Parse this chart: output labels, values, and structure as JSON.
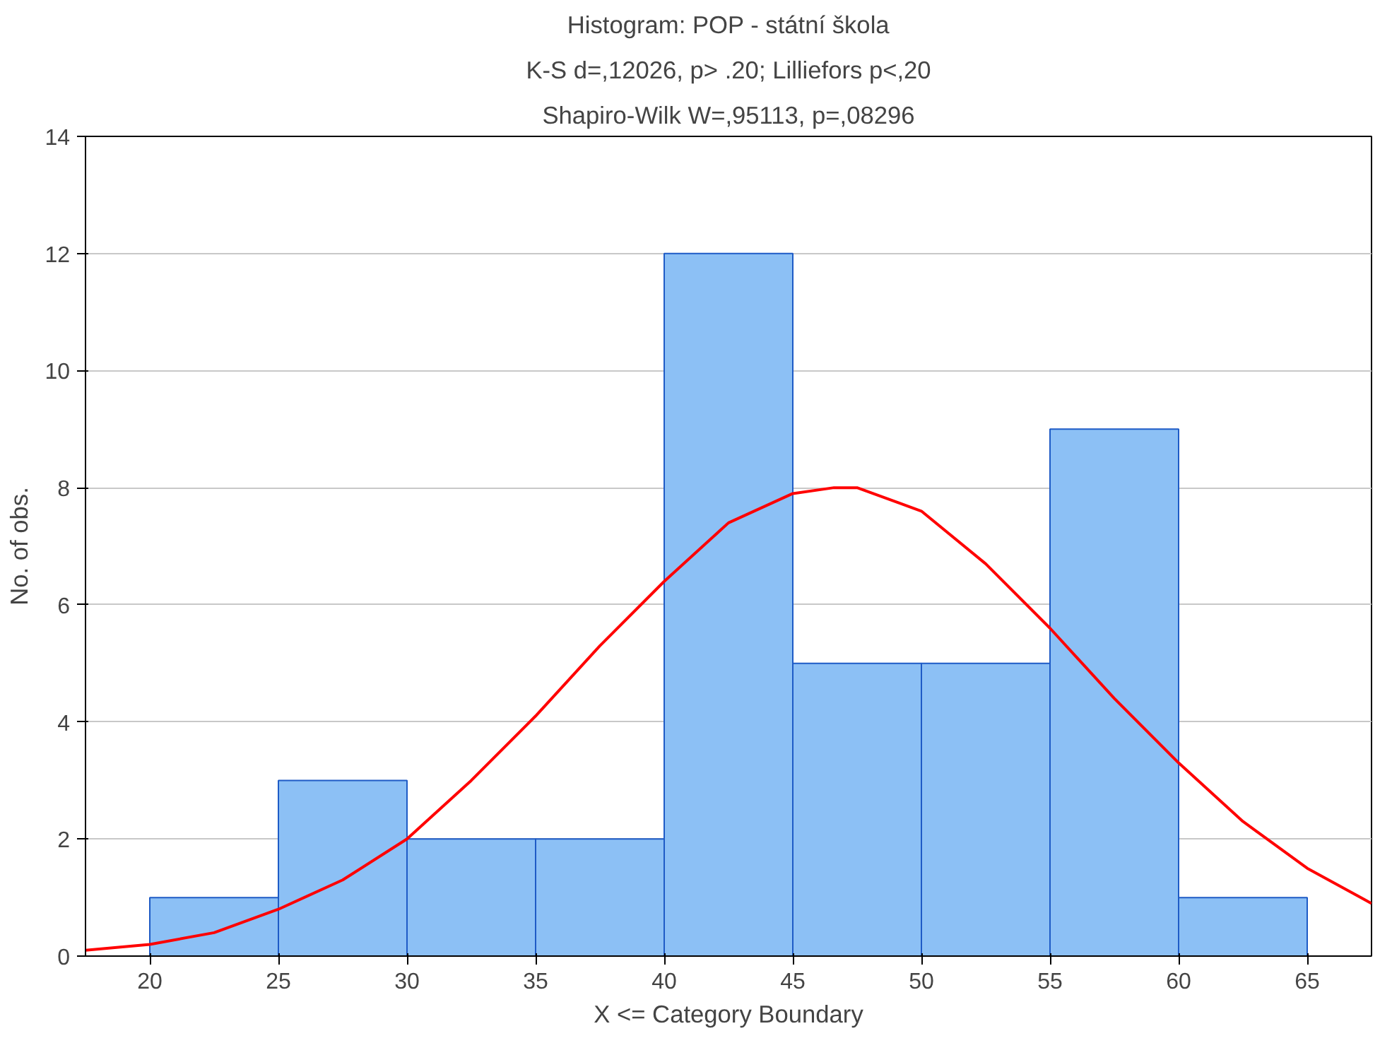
{
  "chart_data": {
    "type": "histogram",
    "title": "Histogram: POP - státní škola",
    "subtitle": "K-S d=,12026, p> .20; Lilliefors p<,20",
    "annotations": [
      "Shapiro-Wilk W=,95113, p=,08296"
    ],
    "xlabel": "X <= Category Boundary",
    "ylabel": "No. of obs.",
    "bins": [
      20,
      25,
      30,
      35,
      40,
      45,
      50,
      55,
      60,
      65
    ],
    "values": [
      1,
      3,
      2,
      2,
      12,
      5,
      5,
      9,
      1
    ],
    "color": "#8cc0f5",
    "series": [
      {
        "type": "line",
        "color": "#ff0000",
        "x": [
          17.5,
          20,
          22.5,
          25,
          27.5,
          30,
          32.5,
          35,
          37.5,
          40,
          42.5,
          45,
          46.6,
          47.5,
          50,
          52.5,
          55,
          57.5,
          60,
          62.5,
          65,
          67.5
        ],
        "values": [
          0.1,
          0.2,
          0.4,
          0.8,
          1.3,
          2.0,
          3.0,
          4.1,
          5.3,
          6.4,
          7.4,
          7.9,
          8.0,
          8.0,
          7.6,
          6.7,
          5.6,
          4.4,
          3.3,
          2.3,
          1.5,
          0.9
        ]
      }
    ],
    "xlim": [
      17.5,
      67.5
    ],
    "xticks": [
      20,
      25,
      30,
      35,
      40,
      45,
      50,
      55,
      60,
      65
    ],
    "ylim": [
      0,
      14
    ],
    "yticks": [
      0,
      2,
      4,
      6,
      8,
      10,
      12,
      14
    ],
    "grid": "y"
  }
}
